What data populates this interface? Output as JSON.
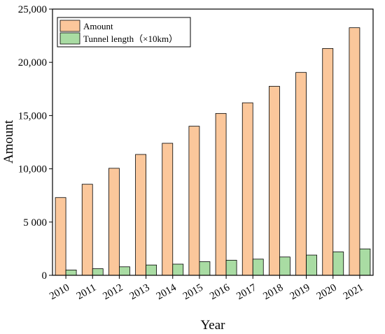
{
  "chart_data": {
    "type": "bar",
    "title": "",
    "xlabel": "Year",
    "ylabel": "Amount",
    "categories": [
      "2010",
      "2011",
      "2012",
      "2013",
      "2014",
      "2015",
      "2016",
      "2017",
      "2018",
      "2019",
      "2020",
      "2021"
    ],
    "series": [
      {
        "name": "Amount",
        "color": "#FBC79B",
        "values": [
          7300,
          8550,
          10050,
          11350,
          12400,
          14000,
          15200,
          16200,
          17750,
          19050,
          21300,
          23250
        ]
      },
      {
        "name": "Tunnel length（×10km）",
        "color": "#A9DCA3",
        "values": [
          500,
          620,
          800,
          970,
          1050,
          1280,
          1420,
          1520,
          1720,
          1900,
          2200,
          2480
        ]
      }
    ],
    "ylim": [
      0,
      25000
    ],
    "yticks": [
      0,
      5000,
      10000,
      15000,
      20000,
      25000
    ],
    "ytick_labels": [
      "0",
      "5 000",
      "10,000",
      "15,000",
      "20,000",
      "25,000"
    ],
    "legend_position": "top-left",
    "grid": false
  }
}
